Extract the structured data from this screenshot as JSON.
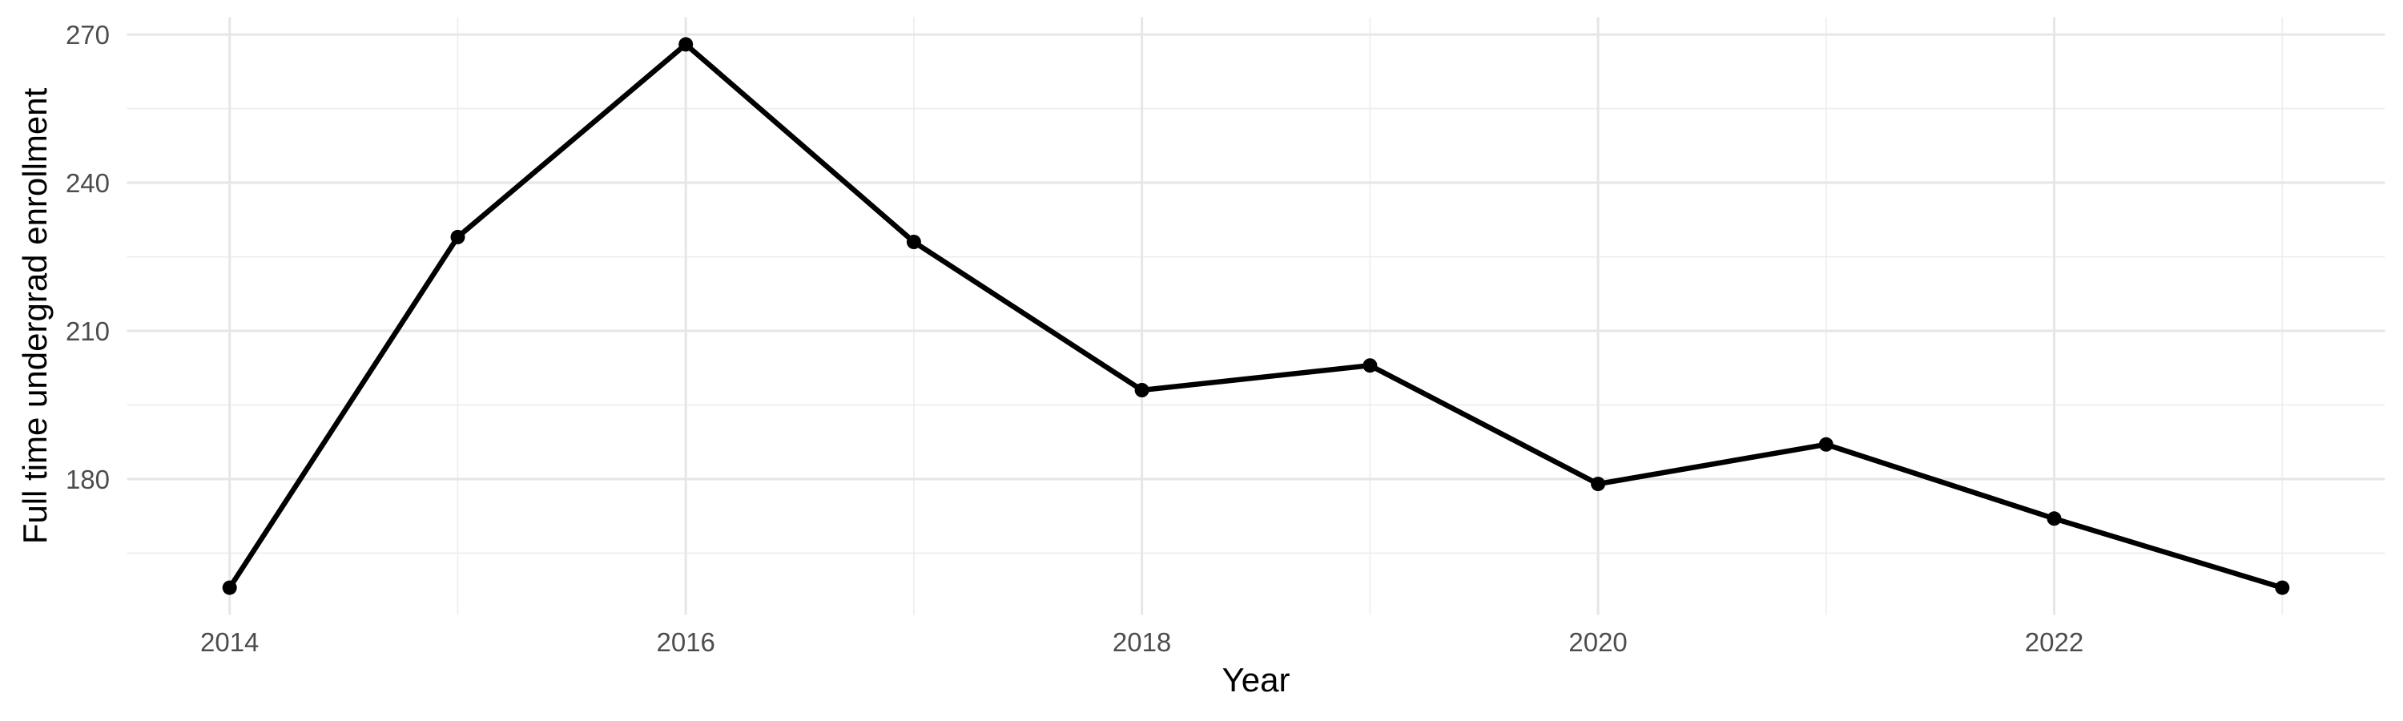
{
  "chart_data": {
    "type": "line",
    "title": "",
    "xlabel": "Year",
    "ylabel": "Full time undergrad enrollment",
    "x": [
      2014,
      2015,
      2016,
      2017,
      2018,
      2019,
      2020,
      2021,
      2022,
      2023
    ],
    "values": [
      158,
      229,
      268,
      228,
      198,
      203,
      179,
      187,
      172,
      158
    ],
    "x_major_ticks": [
      2014,
      2016,
      2018,
      2020,
      2022
    ],
    "x_minor_ticks": [
      2015,
      2017,
      2019,
      2021,
      2023
    ],
    "y_major_ticks": [
      180,
      210,
      240,
      270
    ],
    "y_minor_ticks": [
      165,
      195,
      225,
      255
    ],
    "xlim": [
      2013.55,
      2023.45
    ],
    "ylim": [
      152.5,
      273.5
    ],
    "grid": "major+minor, no axis lines, no tick marks",
    "legend_position": "none",
    "colors": {
      "background": "#ffffff",
      "line": "#000000",
      "point": "#000000",
      "grid_major": "#e6e6e6",
      "grid_minor": "#ededed",
      "tick_label": "#4d4d4d",
      "axis_title": "#000000"
    }
  }
}
